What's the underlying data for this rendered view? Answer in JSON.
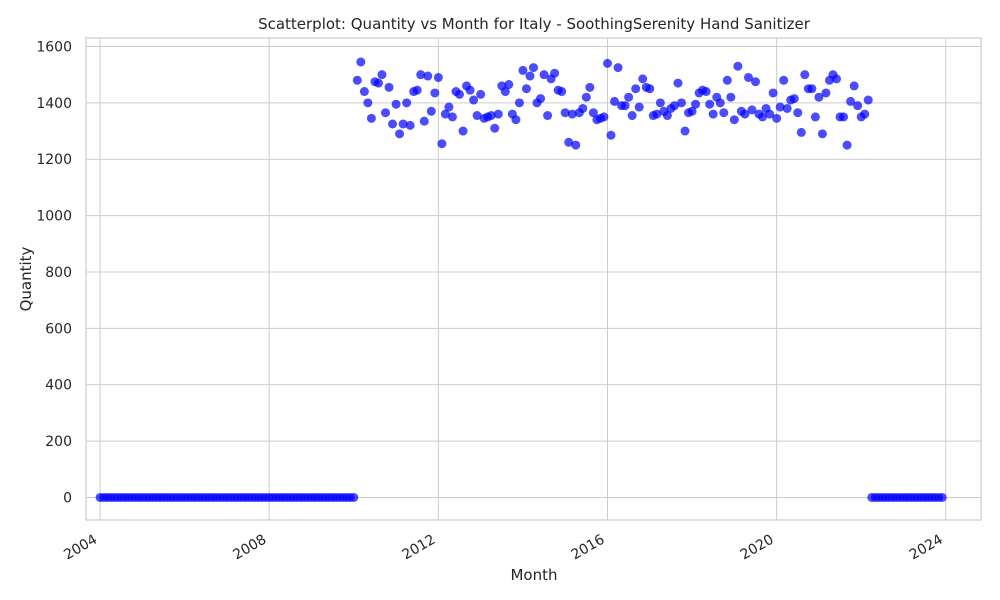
{
  "chart_data": {
    "type": "scatter",
    "title": "Scatterplot: Quantity vs Month for Italy - SoothingSerenity Hand Sanitizer",
    "xlabel": "Month",
    "ylabel": "Quantity",
    "x_ticks": [
      "2004",
      "2008",
      "2012",
      "2016",
      "2020",
      "2024"
    ],
    "y_ticks": [
      "0",
      "200",
      "400",
      "600",
      "800",
      "1000",
      "1200",
      "1400",
      "1600"
    ],
    "xlim": [
      "2003-09",
      "2024-11"
    ],
    "ylim": [
      -80,
      1630
    ],
    "grid": true,
    "marker_color": "#0000ff",
    "zero_periods": [
      {
        "start": "2004-01",
        "end": "2010-01",
        "value": 0
      },
      {
        "start": "2022-04",
        "end": "2023-12",
        "value": 0
      }
    ],
    "series": [
      {
        "start_month": "2010-02",
        "interval": "monthly",
        "values": [
          1480,
          1545,
          1440,
          1400,
          1345,
          1475,
          1470,
          1500,
          1365,
          1455,
          1325,
          1395,
          1290,
          1325,
          1400,
          1320,
          1440,
          1445,
          1500,
          1335,
          1495,
          1370,
          1435,
          1490,
          1255,
          1360,
          1385,
          1350,
          1440,
          1430,
          1300,
          1460,
          1445,
          1410,
          1355,
          1430,
          1345,
          1350,
          1355,
          1310,
          1360,
          1460,
          1440,
          1465,
          1360,
          1340,
          1400,
          1515,
          1450,
          1495,
          1525,
          1400,
          1415,
          1500,
          1355,
          1485,
          1505,
          1445,
          1440,
          1365,
          1260,
          1360,
          1250,
          1365,
          1380,
          1420,
          1455,
          1365,
          1340,
          1345,
          1350,
          1540,
          1285,
          1405,
          1525,
          1390,
          1390,
          1420,
          1355,
          1450,
          1385,
          1485,
          1455,
          1450,
          1355,
          1360,
          1400,
          1370,
          1355,
          1380,
          1390,
          1470,
          1400,
          1300,
          1365,
          1370,
          1395,
          1435,
          1445,
          1440,
          1395,
          1360,
          1420,
          1400,
          1365,
          1480,
          1420,
          1340,
          1530,
          1370,
          1360,
          1490,
          1375,
          1475,
          1360,
          1350,
          1380,
          1360,
          1435,
          1345,
          1385,
          1480,
          1380,
          1410,
          1415,
          1365,
          1295,
          1500,
          1450,
          1450,
          1350,
          1420,
          1290,
          1435,
          1480,
          1500,
          1485,
          1350,
          1350,
          1250,
          1405,
          1460,
          1390,
          1350,
          1360,
          1410
        ]
      }
    ]
  }
}
